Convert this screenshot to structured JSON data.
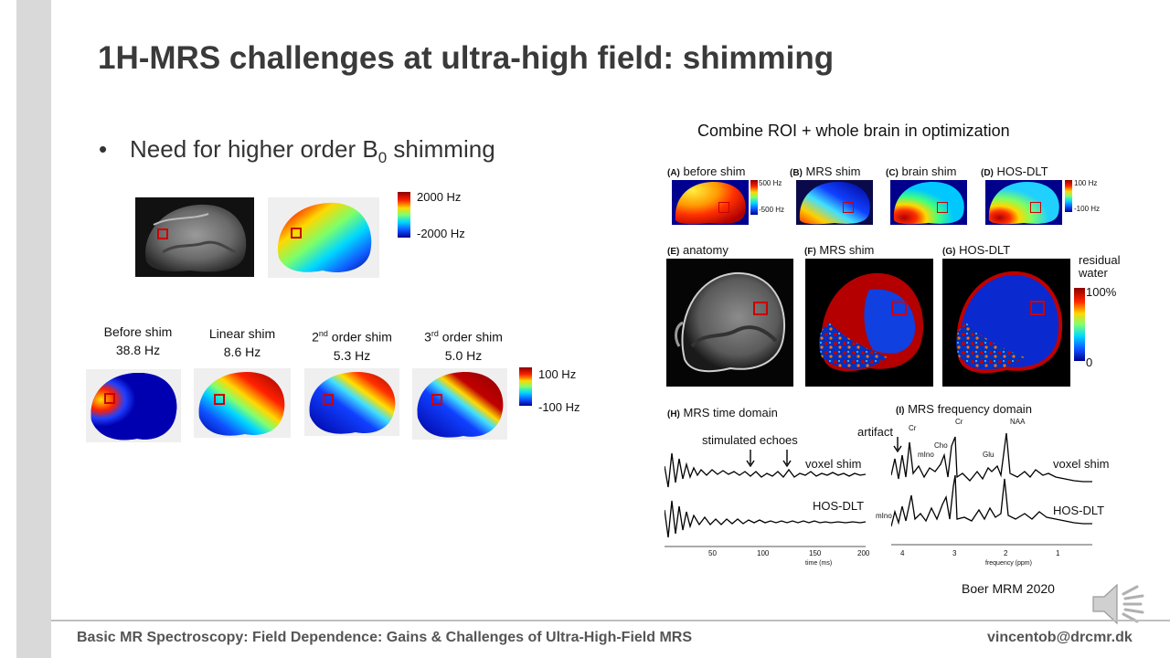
{
  "slide": {
    "title": "1H-MRS challenges at ultra-high field: shimming",
    "bullet_text": "Need for higher order B",
    "bullet_subscript": "0",
    "bullet_suffix": " shimming",
    "bullet_marker": "•"
  },
  "top_colorbar": {
    "max_label": "2000 Hz",
    "min_label": "-2000 Hz"
  },
  "shim_maps": [
    {
      "name": "Before shim",
      "value": "38.8 Hz",
      "order_num": "",
      "order_sup": ""
    },
    {
      "name": "Linear shim",
      "value": "8.6 Hz",
      "order_num": "",
      "order_sup": ""
    },
    {
      "name": " order shim",
      "value": "5.3 Hz",
      "order_num": "2",
      "order_sup": "nd"
    },
    {
      "name": " order shim",
      "value": "5.0 Hz",
      "order_num": "3",
      "order_sup": "rd"
    }
  ],
  "shim_colorbar": {
    "max_label": "100 Hz",
    "min_label": "-100 Hz"
  },
  "figure": {
    "caption": "Combine  ROI + whole brain in optimization",
    "panels_top": [
      {
        "tag": "(A)",
        "label": "before shim"
      },
      {
        "tag": "(B)",
        "label": "MRS shim"
      },
      {
        "tag": "(C)",
        "label": "brain shim"
      },
      {
        "tag": "(D)",
        "label": "HOS-DLT"
      }
    ],
    "cbar_a": {
      "max": "500 Hz",
      "min": "-500 Hz"
    },
    "cbar_d": {
      "max": "100 Hz",
      "min": "-100 Hz"
    },
    "panels_mid": [
      {
        "tag": "(E)",
        "label": "anatomy"
      },
      {
        "tag": "(F)",
        "label": "MRS shim"
      },
      {
        "tag": "(G)",
        "label": "HOS-DLT"
      }
    ],
    "residual": {
      "line1": "residual",
      "line2": "water",
      "max": "100%",
      "min": "0"
    },
    "time_domain": {
      "tag": "(H)",
      "label": "MRS time domain",
      "annotation": "stimulated echoes",
      "trace_top": "voxel shim",
      "trace_bottom": "HOS-DLT",
      "ticks": [
        "50",
        "100",
        "150",
        "200"
      ],
      "xlabel": "time (ms)"
    },
    "freq_domain": {
      "tag": "(I)",
      "label": "MRS frequency domain",
      "artifact": "artifact",
      "peaks": [
        "Cr",
        "mIno",
        "Cho",
        "Cr",
        "Glu",
        "NAA",
        "mIno"
      ],
      "trace_top": "voxel shim",
      "trace_bottom": "HOS-DLT",
      "ticks": [
        "4",
        "3",
        "2",
        "1"
      ],
      "xlabel": "frequency (ppm)"
    },
    "citation": "Boer MRM 2020"
  },
  "footer": {
    "course": "Basic MR Spectroscopy: Field Dependence: Gains & Challenges of Ultra-High-Field MRS",
    "email": "vincentob@drcmr.dk"
  },
  "colors": {
    "roi": "#cc0000",
    "sidebar": "#d9d9d9",
    "title": "#3a3a3a"
  }
}
